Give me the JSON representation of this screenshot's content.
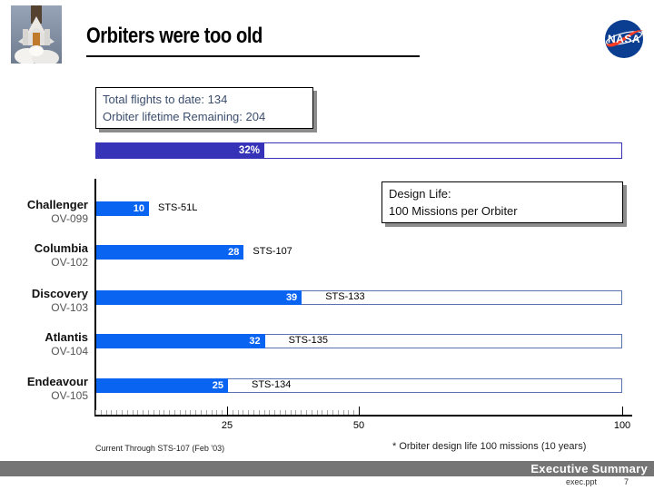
{
  "slide": {
    "title": "Orbiters were too old",
    "footer_section": "Executive Summary",
    "footer_file": "exec.ppt",
    "footer_page": "7"
  },
  "icons": {
    "shuttle_photo": "shuttle-launch-photo",
    "nasa_logo": "nasa-meatball-logo"
  },
  "colors": {
    "summary_bar_fill": "#3733b8",
    "orbiter_bar_fill": "#0a64f2",
    "ghost_bar_border": "#5a72b0",
    "footer_bar_bg": "#757575",
    "nasa_blue": "#0b3d91",
    "nasa_red": "#fc3d21",
    "stats_text": "#3c4e6e"
  },
  "callouts": {
    "stats_box": {
      "line1": "Total flights to date: 134",
      "line2": "Orbiter lifetime Remaining: 204"
    },
    "design_life_box": {
      "line1": "Design Life:",
      "line2": "100 Missions per Orbiter"
    }
  },
  "notes": {
    "left": "Current Through STS-107 (Feb '03)",
    "right": "* Orbiter design life 100 missions (10 years)"
  },
  "chart_data": {
    "type": "bar",
    "orientation": "horizontal",
    "title": "",
    "xlabel": "",
    "xlim": [
      0,
      100
    ],
    "x_ticks": [
      25,
      50,
      100
    ],
    "minor_ticks_range": [
      0,
      50
    ],
    "minor_ticks_step": 1,
    "grid": false,
    "summary_bar": {
      "label": "32%",
      "value": 32,
      "max": 100
    },
    "design_life_missions_per_orbiter": 100,
    "rows": [
      {
        "name": "Challenger",
        "ov": "OV-099",
        "flights": 10,
        "mission": "STS-51L",
        "show_design_life": false
      },
      {
        "name": "Columbia",
        "ov": "OV-102",
        "flights": 28,
        "mission": "STS-107",
        "show_design_life": false
      },
      {
        "name": "Discovery",
        "ov": "OV-103",
        "flights": 39,
        "mission": "STS-133",
        "show_design_life": true
      },
      {
        "name": "Atlantis",
        "ov": "OV-104",
        "flights": 32,
        "mission": "STS-135",
        "show_design_life": true
      },
      {
        "name": "Endeavour",
        "ov": "OV-105",
        "flights": 25,
        "mission": "STS-134",
        "show_design_life": true
      }
    ]
  }
}
